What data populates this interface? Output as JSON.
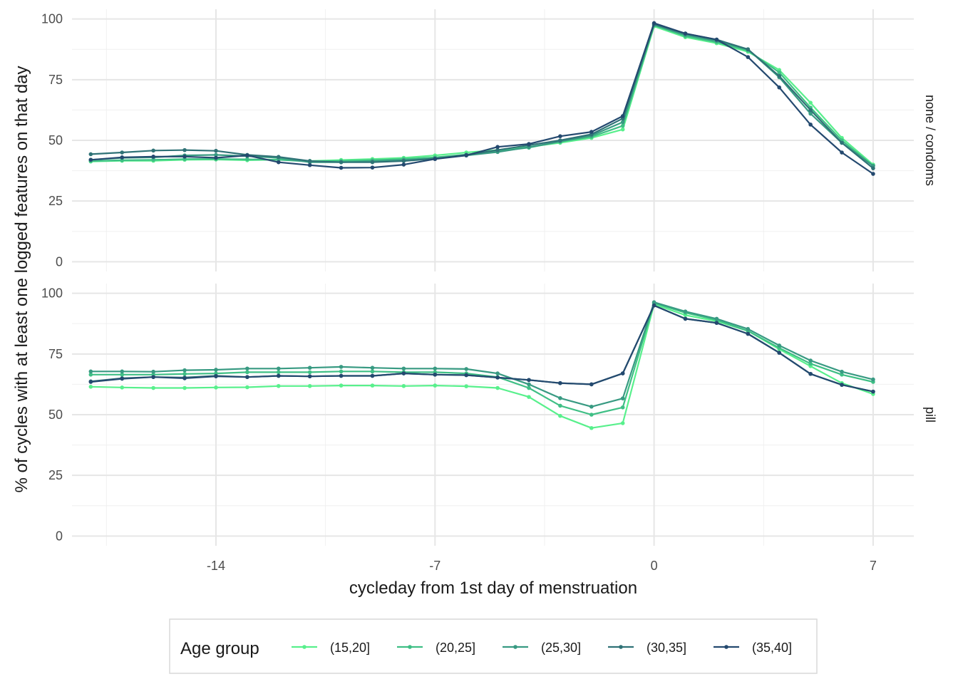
{
  "chart_data": {
    "type": "line",
    "xlabel": "cycleday from 1st day of menstruation",
    "ylabel": "% of cycles with at least one logged features on that day",
    "xlim": [
      -18.6,
      8.3
    ],
    "ylim": [
      -4,
      104
    ],
    "x_ticks": [
      -14,
      -7,
      0,
      7
    ],
    "x_tick_labels": [
      "-14",
      "-7",
      "0",
      "7"
    ],
    "y_ticks": [
      0,
      25,
      50,
      75,
      100
    ],
    "y_tick_labels": [
      "0",
      "25",
      "50",
      "75",
      "100"
    ],
    "grid": true,
    "legend": {
      "title": "Age group",
      "position": "bottom",
      "entries": [
        "(15,20]",
        "(20,25]",
        "(25,30]",
        "(30,35]",
        "(35,40]"
      ]
    },
    "colors": {
      "(15,20]": "#58f08c",
      "(20,25]": "#3fbf85",
      "(25,30]": "#389a82",
      "(30,35]": "#2f7276",
      "(35,40]": "#24496f"
    },
    "x": [
      -18,
      -17,
      -16,
      -15,
      -14,
      -13,
      -12,
      -11,
      -10,
      -9,
      -8,
      -7,
      -6,
      -5,
      -4,
      -3,
      -2,
      -1,
      0,
      1,
      2,
      3,
      4,
      5,
      6,
      7
    ],
    "panels": [
      {
        "label": "none / condoms",
        "series": [
          {
            "name": "(15,20]",
            "values": [
              41.3,
              41.6,
              41.6,
              42.0,
              42.1,
              41.8,
              42.1,
              41.5,
              41.9,
              42.3,
              42.8,
              43.8,
              45.0,
              46.0,
              47.3,
              49.0,
              51.0,
              54.5,
              97.0,
              92.5,
              90.0,
              86.5,
              79.0,
              65.5,
              51.0,
              40.0
            ]
          },
          {
            "name": "(20,25]",
            "values": [
              41.5,
              41.8,
              42.0,
              42.3,
              42.3,
              42.2,
              42.0,
              41.3,
              41.5,
              41.8,
              42.3,
              43.0,
              44.2,
              45.5,
              47.0,
              49.5,
              51.5,
              56.0,
              97.5,
              93.0,
              90.5,
              87.0,
              78.0,
              63.5,
              50.0,
              39.5
            ]
          },
          {
            "name": "(25,30]",
            "values": [
              42.0,
              42.8,
              43.0,
              43.8,
              44.0,
              43.5,
              42.8,
              41.0,
              41.0,
              41.3,
              41.8,
              42.5,
              43.8,
              45.2,
              47.2,
              49.5,
              52.0,
              57.5,
              97.5,
              93.5,
              91.0,
              87.5,
              76.0,
              61.0,
              49.0,
              39.5
            ]
          },
          {
            "name": "(30,35]",
            "values": [
              44.3,
              45.0,
              45.8,
              46.0,
              45.7,
              44.0,
              43.2,
              41.5,
              41.0,
              41.0,
              41.5,
              42.5,
              44.0,
              46.0,
              48.0,
              50.0,
              52.5,
              59.0,
              98.0,
              94.0,
              91.5,
              87.5,
              76.5,
              62.5,
              49.0,
              38.5
            ]
          },
          {
            "name": "(35,40]",
            "values": [
              42.0,
              43.0,
              43.3,
              43.3,
              42.8,
              43.8,
              41.0,
              39.8,
              38.7,
              38.8,
              40.0,
              42.3,
              43.8,
              47.3,
              48.5,
              51.7,
              53.5,
              60.0,
              98.3,
              94.0,
              91.5,
              84.3,
              71.8,
              56.5,
              45.0,
              36.2
            ]
          }
        ]
      },
      {
        "label": "pill",
        "series": [
          {
            "name": "(15,20]",
            "values": [
              61.5,
              61.2,
              61.0,
              61.0,
              61.2,
              61.3,
              61.8,
              61.8,
              62.0,
              62.0,
              61.8,
              62.0,
              61.7,
              61.0,
              57.3,
              49.5,
              44.5,
              46.5,
              95.5,
              91.0,
              88.5,
              84.5,
              77.0,
              70.0,
              63.0,
              58.5
            ]
          },
          {
            "name": "(20,25]",
            "values": [
              66.5,
              66.5,
              66.5,
              66.8,
              67.0,
              67.5,
              67.5,
              67.5,
              67.8,
              67.8,
              67.5,
              67.5,
              67.0,
              65.5,
              61.0,
              53.7,
              50.0,
              53.0,
              96.0,
              92.0,
              89.0,
              84.5,
              77.5,
              71.0,
              66.5,
              63.5
            ]
          },
          {
            "name": "(25,30]",
            "values": [
              67.8,
              67.8,
              67.7,
              68.3,
              68.5,
              69.0,
              69.0,
              69.3,
              69.7,
              69.3,
              69.0,
              69.0,
              68.8,
              67.0,
              62.5,
              56.8,
              53.3,
              56.7,
              96.3,
              92.5,
              89.5,
              85.3,
              78.5,
              72.3,
              67.7,
              64.5
            ]
          },
          {
            "name": "(30,35]",
            "values": [
              63.7,
              65.0,
              65.5,
              65.3,
              66.0,
              65.5,
              66.0,
              65.8,
              66.0,
              66.0,
              67.0,
              66.5,
              66.3,
              65.3,
              64.3,
              63.0,
              62.5,
              67.0,
              95.0,
              89.5,
              87.8,
              83.3,
              75.5,
              66.8,
              62.3,
              59.5
            ]
          },
          {
            "name": "(35,40]",
            "values": [
              63.5,
              64.8,
              65.5,
              65.0,
              65.8,
              65.5,
              66.0,
              65.8,
              66.0,
              66.0,
              67.0,
              66.5,
              66.3,
              65.3,
              64.3,
              63.0,
              62.5,
              67.0,
              95.0,
              89.5,
              87.8,
              83.3,
              75.5,
              66.8,
              62.3,
              59.5
            ]
          }
        ]
      }
    ]
  }
}
